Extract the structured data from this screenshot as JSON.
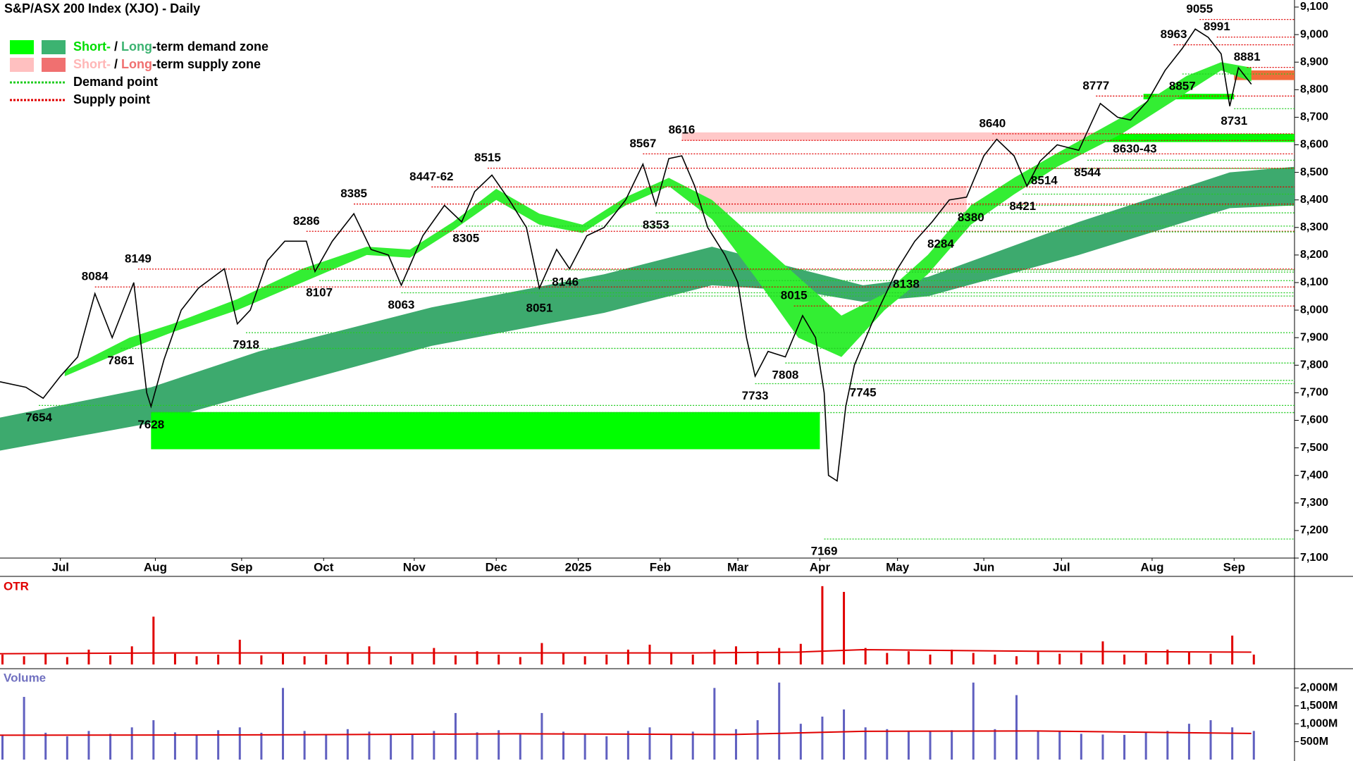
{
  "chart_data": [
    {
      "type": "line",
      "title": "S&P/ASX 200 Index (XJO) - Daily",
      "xlim": [
        0,
        300
      ],
      "xticks": [
        {
          "value": 14,
          "label": "Jul"
        },
        {
          "value": 36,
          "label": "Aug"
        },
        {
          "value": 56,
          "label": "Sep"
        },
        {
          "value": 75,
          "label": "Oct"
        },
        {
          "value": 96,
          "label": "Nov"
        },
        {
          "value": 115,
          "label": "Dec"
        },
        {
          "value": 134,
          "label": "2025"
        },
        {
          "value": 153,
          "label": "Feb"
        },
        {
          "value": 171,
          "label": "Mar"
        },
        {
          "value": 190,
          "label": "Apr"
        },
        {
          "value": 208,
          "label": "May"
        },
        {
          "value": 228,
          "label": "Jun"
        },
        {
          "value": 246,
          "label": "Jul"
        },
        {
          "value": 267,
          "label": "Aug"
        },
        {
          "value": 286,
          "label": "Sep"
        }
      ],
      "ylim": [
        7100,
        9100
      ],
      "yticks": [
        {
          "value": 7100,
          "label": "7,100"
        },
        {
          "value": 7200,
          "label": "7,200"
        },
        {
          "value": 7300,
          "label": "7,300"
        },
        {
          "value": 7400,
          "label": "7,400"
        },
        {
          "value": 7500,
          "label": "7,500"
        },
        {
          "value": 7600,
          "label": "7,600"
        },
        {
          "value": 7700,
          "label": "7,700"
        },
        {
          "value": 7800,
          "label": "7,800"
        },
        {
          "value": 7900,
          "label": "7,900"
        },
        {
          "value": 8000,
          "label": "8,000"
        },
        {
          "value": 8100,
          "label": "8,100"
        },
        {
          "value": 8200,
          "label": "8,200"
        },
        {
          "value": 8300,
          "label": "8,300"
        },
        {
          "value": 8400,
          "label": "8,400"
        },
        {
          "value": 8500,
          "label": "8,500"
        },
        {
          "value": 8600,
          "label": "8,600"
        },
        {
          "value": 8700,
          "label": "8,700"
        },
        {
          "value": 8800,
          "label": "8,800"
        },
        {
          "value": 8900,
          "label": "8,900"
        },
        {
          "value": 9000,
          "label": "9,000"
        },
        {
          "value": 9100,
          "label": "9,100"
        }
      ],
      "legend": [
        {
          "parts": [
            "Short-",
            " / ",
            "Long",
            "-term demand zone"
          ],
          "part_colors": [
            "#00dd00",
            "#000000",
            "#3cb371",
            "#000000"
          ],
          "swatch_colors": [
            "#00ff00",
            "#3cb371"
          ],
          "swatch": "zone"
        },
        {
          "parts": [
            "Short-",
            " / ",
            "Long",
            "-term supply zone"
          ],
          "part_colors": [
            "#ffb6b6",
            "#000000",
            "#f07070",
            "#000000"
          ],
          "swatch_colors": [
            "#ffc0c0",
            "#f07070"
          ],
          "swatch": "zone"
        },
        {
          "parts": [
            "Demand point"
          ],
          "part_colors": [
            "#000000"
          ],
          "swatch_colors": [
            "#22cc22"
          ],
          "swatch": "dots"
        },
        {
          "parts": [
            "Supply point"
          ],
          "part_colors": [
            "#000000"
          ],
          "swatch_colors": [
            "#e00000"
          ],
          "swatch": "dots"
        }
      ],
      "long_band": {
        "color": "#3daa6e",
        "x": [
          0,
          35,
          60,
          100,
          140,
          165,
          185,
          200,
          215,
          250,
          285,
          300
        ],
        "upper": [
          7610,
          7720,
          7850,
          8010,
          8130,
          8230,
          8150,
          8090,
          8120,
          8320,
          8500,
          8520
        ],
        "lower": [
          7490,
          7590,
          7700,
          7870,
          7990,
          8090,
          8070,
          8030,
          8050,
          8200,
          8370,
          8380
        ]
      },
      "short_band": {
        "color": "#33ee33",
        "x": [
          15,
          30,
          40,
          55,
          70,
          85,
          95,
          105,
          115,
          125,
          135,
          145,
          155,
          165,
          175,
          185,
          195,
          205,
          215,
          225,
          235,
          245,
          260,
          275,
          283,
          290
        ],
        "upper": [
          7780,
          7900,
          7950,
          8040,
          8150,
          8230,
          8220,
          8320,
          8440,
          8350,
          8310,
          8410,
          8480,
          8400,
          8260,
          8120,
          7980,
          8060,
          8200,
          8380,
          8480,
          8570,
          8700,
          8850,
          8900,
          8880
        ],
        "lower": [
          7760,
          7860,
          7920,
          8000,
          8100,
          8200,
          8190,
          8290,
          8400,
          8310,
          8280,
          8380,
          8450,
          8330,
          8120,
          7900,
          7830,
          8000,
          8130,
          8310,
          8420,
          8520,
          8640,
          8790,
          8870,
          8830
        ]
      },
      "zones": [
        {
          "color": "#00ff00",
          "x": [
            35,
            190
          ],
          "y": [
            7495,
            7630
          ]
        },
        {
          "color": "#00ff00",
          "x": [
            255,
            300
          ],
          "y": [
            8610,
            8640
          ]
        },
        {
          "color": "#00ff00",
          "x": [
            265,
            286
          ],
          "y": [
            8765,
            8785
          ]
        },
        {
          "color": "#ffc8c8",
          "x": [
            158,
            255
          ],
          "y": [
            8616,
            8645
          ]
        },
        {
          "color": "#ffd0d0",
          "x": [
            162,
            224
          ],
          "y": [
            8355,
            8450
          ]
        },
        {
          "color": "#f26b3a",
          "x": [
            286,
            300
          ],
          "y": [
            8835,
            8870
          ]
        }
      ],
      "series": [
        {
          "color": "#000000",
          "x": [
            0,
            6,
            10,
            14,
            18,
            22,
            26,
            31,
            34,
            35,
            38,
            42,
            46,
            52,
            55,
            58,
            62,
            66,
            71,
            73,
            77,
            82,
            86,
            90,
            93,
            98,
            103,
            107,
            110,
            114,
            118,
            122,
            125,
            129,
            132,
            136,
            140,
            145,
            149,
            152,
            155,
            158,
            161,
            164,
            168,
            171,
            173,
            175,
            178,
            182,
            186,
            189,
            191,
            192,
            194,
            196,
            198,
            202,
            205,
            208,
            212,
            216,
            220,
            224,
            228,
            231,
            235,
            238,
            241,
            245,
            250,
            255,
            259,
            262,
            266,
            270,
            274,
            277,
            280,
            283,
            285,
            287,
            290
          ],
          "values": [
            7740,
            7720,
            7680,
            7760,
            7830,
            8060,
            7900,
            8100,
            7700,
            7650,
            7820,
            8000,
            8080,
            8150,
            7950,
            8000,
            8180,
            8250,
            8250,
            8140,
            8250,
            8350,
            8220,
            8200,
            8090,
            8270,
            8380,
            8320,
            8430,
            8490,
            8400,
            8300,
            8080,
            8220,
            8150,
            8270,
            8300,
            8400,
            8530,
            8380,
            8550,
            8560,
            8450,
            8300,
            8200,
            8100,
            7900,
            7760,
            7850,
            7830,
            7980,
            7900,
            7700,
            7400,
            7380,
            7650,
            7800,
            7950,
            8050,
            8150,
            8250,
            8320,
            8400,
            8410,
            8560,
            8620,
            8560,
            8450,
            8540,
            8600,
            8580,
            8750,
            8700,
            8690,
            8760,
            8870,
            8950,
            9020,
            8990,
            8930,
            8740,
            8880,
            8820
          ]
        }
      ],
      "supply_color": "#e00000",
      "demand_color": "#22cc22",
      "annotations": [
        {
          "value": 8084,
          "x": 22,
          "kind": "supply"
        },
        {
          "value": 8149,
          "x": 32,
          "kind": "supply"
        },
        {
          "value": 8286,
          "x": 71,
          "kind": "supply"
        },
        {
          "value": 8385,
          "x": 82,
          "kind": "supply"
        },
        {
          "value": 8447,
          "label": "8447-62",
          "x": 100,
          "kind": "supply"
        },
        {
          "value": 8515,
          "x": 113,
          "kind": "supply"
        },
        {
          "value": 8567,
          "x": 149,
          "kind": "supply"
        },
        {
          "value": 8616,
          "x": 158,
          "kind": "supply"
        },
        {
          "value": 8015,
          "x": 184,
          "kind": "supply"
        },
        {
          "value": 8640,
          "x": 230,
          "kind": "supply"
        },
        {
          "value": 8777,
          "x": 254,
          "kind": "supply"
        },
        {
          "value": 8963,
          "x": 272,
          "kind": "supply"
        },
        {
          "value": 9055,
          "x": 278,
          "kind": "supply"
        },
        {
          "value": 8991,
          "x": 282,
          "kind": "supply"
        },
        {
          "value": 8881,
          "x": 289,
          "kind": "supply"
        },
        {
          "value": 7654,
          "x": 9,
          "kind": "demand"
        },
        {
          "value": 7861,
          "x": 28,
          "kind": "demand"
        },
        {
          "value": 7628,
          "x": 35,
          "kind": "demand"
        },
        {
          "value": 7918,
          "x": 57,
          "kind": "demand"
        },
        {
          "value": 8107,
          "x": 74,
          "kind": "demand"
        },
        {
          "value": 8063,
          "x": 93,
          "kind": "demand"
        },
        {
          "value": 8305,
          "x": 108,
          "kind": "demand"
        },
        {
          "value": 8051,
          "x": 125,
          "kind": "demand"
        },
        {
          "value": 8146,
          "x": 131,
          "kind": "demand"
        },
        {
          "value": 8353,
          "x": 152,
          "kind": "demand"
        },
        {
          "value": 7733,
          "x": 175,
          "kind": "demand"
        },
        {
          "value": 7808,
          "x": 182,
          "kind": "demand"
        },
        {
          "value": 7169,
          "x": 191,
          "kind": "demand"
        },
        {
          "value": 7745,
          "x": 200,
          "kind": "demand"
        },
        {
          "value": 8138,
          "x": 210,
          "kind": "demand"
        },
        {
          "value": 8284,
          "x": 218,
          "kind": "demand"
        },
        {
          "value": 8380,
          "x": 225,
          "kind": "demand"
        },
        {
          "value": 8421,
          "x": 237,
          "kind": "demand"
        },
        {
          "value": 8514,
          "x": 242,
          "kind": "demand"
        },
        {
          "value": 8544,
          "x": 252,
          "kind": "demand"
        },
        {
          "value": 8630,
          "label": "8630-43",
          "x": 263,
          "kind": "demand"
        },
        {
          "value": 8857,
          "x": 274,
          "kind": "demand"
        },
        {
          "value": 8731,
          "x": 286,
          "kind": "demand"
        }
      ]
    },
    {
      "type": "bar",
      "title": "OTR",
      "title_color": "#e00000",
      "color": "#e00000",
      "ylim": [
        0,
        100
      ],
      "x": [
        0,
        5,
        10,
        15,
        20,
        25,
        30,
        35,
        40,
        45,
        50,
        55,
        60,
        65,
        70,
        75,
        80,
        85,
        90,
        95,
        100,
        105,
        110,
        115,
        120,
        125,
        130,
        135,
        140,
        145,
        150,
        155,
        160,
        165,
        170,
        175,
        180,
        185,
        190,
        195,
        200,
        205,
        210,
        215,
        220,
        225,
        230,
        235,
        240,
        245,
        250,
        255,
        260,
        265,
        270,
        275,
        280,
        285,
        290
      ],
      "values": [
        12,
        10,
        14,
        9,
        18,
        11,
        22,
        58,
        13,
        10,
        12,
        30,
        11,
        14,
        10,
        12,
        15,
        22,
        10,
        13,
        20,
        11,
        16,
        12,
        9,
        26,
        14,
        10,
        12,
        18,
        24,
        15,
        12,
        18,
        22,
        16,
        20,
        25,
        95,
        88,
        20,
        14,
        16,
        12,
        18,
        14,
        12,
        10,
        15,
        13,
        14,
        28,
        12,
        14,
        18,
        15,
        13,
        35,
        12
      ],
      "average": {
        "color": "#e00000",
        "x": [
          0,
          40,
          100,
          160,
          185,
          200,
          240,
          290
        ],
        "values": [
          13,
          14,
          14,
          14,
          15,
          18,
          16,
          15
        ]
      }
    },
    {
      "type": "bar",
      "title": "Volume",
      "title_color": "#7070c0",
      "color": "#6060c0",
      "ylim": [
        0,
        2400
      ],
      "yticks": [
        {
          "value": 500,
          "label": "500M"
        },
        {
          "value": 1000,
          "label": "1,000M"
        },
        {
          "value": 1500,
          "label": "1,500M"
        },
        {
          "value": 2000,
          "label": "2,000M"
        }
      ],
      "x": [
        0,
        5,
        10,
        15,
        20,
        25,
        30,
        35,
        40,
        45,
        50,
        55,
        60,
        65,
        70,
        75,
        80,
        85,
        90,
        95,
        100,
        105,
        110,
        115,
        120,
        125,
        130,
        135,
        140,
        145,
        150,
        155,
        160,
        165,
        170,
        175,
        180,
        185,
        190,
        195,
        200,
        205,
        210,
        215,
        220,
        225,
        230,
        235,
        240,
        245,
        250,
        255,
        260,
        265,
        270,
        275,
        280,
        285,
        290
      ],
      "values": [
        700,
        1750,
        750,
        650,
        800,
        720,
        900,
        1100,
        760,
        680,
        820,
        900,
        750,
        2000,
        800,
        700,
        850,
        780,
        720,
        690,
        800,
        1300,
        760,
        820,
        700,
        1300,
        780,
        720,
        650,
        800,
        900,
        700,
        780,
        2000,
        850,
        1100,
        2150,
        1000,
        1200,
        1400,
        900,
        850,
        800,
        780,
        820,
        2150,
        850,
        1800,
        800,
        780,
        720,
        700,
        690,
        750,
        800,
        1000,
        1100,
        900,
        800
      ],
      "average": {
        "color": "#e00000",
        "x": [
          0,
          60,
          120,
          170,
          200,
          240,
          290
        ],
        "values": [
          680,
          690,
          720,
          700,
          790,
          800,
          730
        ]
      }
    }
  ]
}
